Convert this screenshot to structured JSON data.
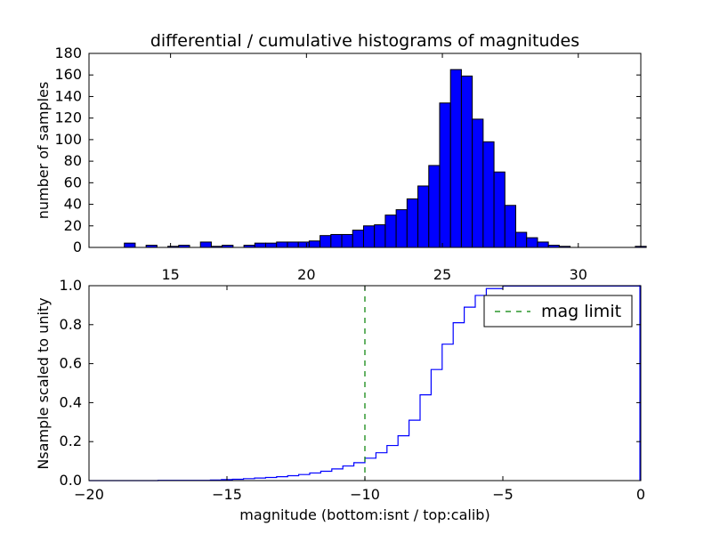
{
  "chart_data": [
    {
      "type": "bar",
      "title": "differential / cumulative histograms of magnitudes",
      "ylabel": "number of samples",
      "xlabel": "",
      "xlim": [
        12.0,
        32.3
      ],
      "ylim": [
        0,
        180
      ],
      "xticks": [
        15,
        20,
        25,
        30
      ],
      "xtick_labels": [
        "15",
        "20",
        "25",
        "30"
      ],
      "yticks": [
        0,
        20,
        40,
        60,
        80,
        100,
        120,
        140,
        160,
        180
      ],
      "ytick_labels": [
        "0",
        "20",
        "40",
        "60",
        "80",
        "100",
        "120",
        "140",
        "160",
        "180"
      ],
      "bar_color": "#0000ff",
      "bin_width": 0.4,
      "bins": [
        {
          "x0": 13.3,
          "v": 4
        },
        {
          "x0": 14.1,
          "v": 2
        },
        {
          "x0": 14.9,
          "v": 1
        },
        {
          "x0": 15.3,
          "v": 2
        },
        {
          "x0": 16.1,
          "v": 5
        },
        {
          "x0": 16.5,
          "v": 1
        },
        {
          "x0": 16.9,
          "v": 2
        },
        {
          "x0": 17.7,
          "v": 2
        },
        {
          "x0": 18.1,
          "v": 4
        },
        {
          "x0": 18.5,
          "v": 4
        },
        {
          "x0": 18.9,
          "v": 5
        },
        {
          "x0": 19.3,
          "v": 5
        },
        {
          "x0": 19.7,
          "v": 5
        },
        {
          "x0": 20.1,
          "v": 6
        },
        {
          "x0": 20.5,
          "v": 11
        },
        {
          "x0": 20.9,
          "v": 12
        },
        {
          "x0": 21.3,
          "v": 12
        },
        {
          "x0": 21.7,
          "v": 16
        },
        {
          "x0": 22.1,
          "v": 20
        },
        {
          "x0": 22.5,
          "v": 21
        },
        {
          "x0": 22.9,
          "v": 30
        },
        {
          "x0": 23.3,
          "v": 35
        },
        {
          "x0": 23.7,
          "v": 45
        },
        {
          "x0": 24.1,
          "v": 57
        },
        {
          "x0": 24.5,
          "v": 76
        },
        {
          "x0": 24.9,
          "v": 134
        },
        {
          "x0": 25.3,
          "v": 165
        },
        {
          "x0": 25.7,
          "v": 159
        },
        {
          "x0": 26.1,
          "v": 119
        },
        {
          "x0": 26.5,
          "v": 98
        },
        {
          "x0": 26.9,
          "v": 70
        },
        {
          "x0": 27.3,
          "v": 39
        },
        {
          "x0": 27.7,
          "v": 14
        },
        {
          "x0": 28.1,
          "v": 9
        },
        {
          "x0": 28.5,
          "v": 5
        },
        {
          "x0": 28.9,
          "v": 2
        },
        {
          "x0": 29.3,
          "v": 1
        },
        {
          "x0": 32.1,
          "v": 1
        }
      ]
    },
    {
      "type": "line",
      "ylabel": "Nsample scaled to unity",
      "xlabel": "magnitude (bottom:isnt / top:calib)",
      "xlim": [
        -20,
        0
      ],
      "ylim": [
        0,
        1.0
      ],
      "xticks": [
        -20,
        -15,
        -10,
        -5,
        0
      ],
      "xtick_labels": [
        "−20",
        "−15",
        "−10",
        "−5",
        "0"
      ],
      "yticks": [
        0.0,
        0.2,
        0.4,
        0.6,
        0.8,
        1.0
      ],
      "ytick_labels": [
        "0.0",
        "0.2",
        "0.4",
        "0.6",
        "0.8",
        "1.0"
      ],
      "step_color": "#0000ff",
      "step_x": [
        -20.0,
        -17.5,
        -15.6,
        -15.2,
        -14.8,
        -14.4,
        -14.0,
        -13.6,
        -13.2,
        -12.8,
        -12.4,
        -12.0,
        -11.6,
        -11.2,
        -10.8,
        -10.4,
        -10.0,
        -9.6,
        -9.2,
        -8.8,
        -8.4,
        -8.0,
        -7.6,
        -7.2,
        -6.8,
        -6.4,
        -6.0,
        -5.6,
        -5.0,
        -0.05
      ],
      "step_y": [
        0.0,
        0.001,
        0.003,
        0.005,
        0.007,
        0.01,
        0.013,
        0.016,
        0.02,
        0.025,
        0.031,
        0.039,
        0.048,
        0.06,
        0.075,
        0.092,
        0.115,
        0.143,
        0.18,
        0.23,
        0.31,
        0.44,
        0.57,
        0.7,
        0.81,
        0.89,
        0.95,
        0.985,
        0.998,
        1.0
      ],
      "series": [
        {
          "name": "mag limit",
          "style": "dashed",
          "color": "#008000",
          "x": -10.0
        }
      ],
      "legend_position": "upper-right"
    }
  ]
}
